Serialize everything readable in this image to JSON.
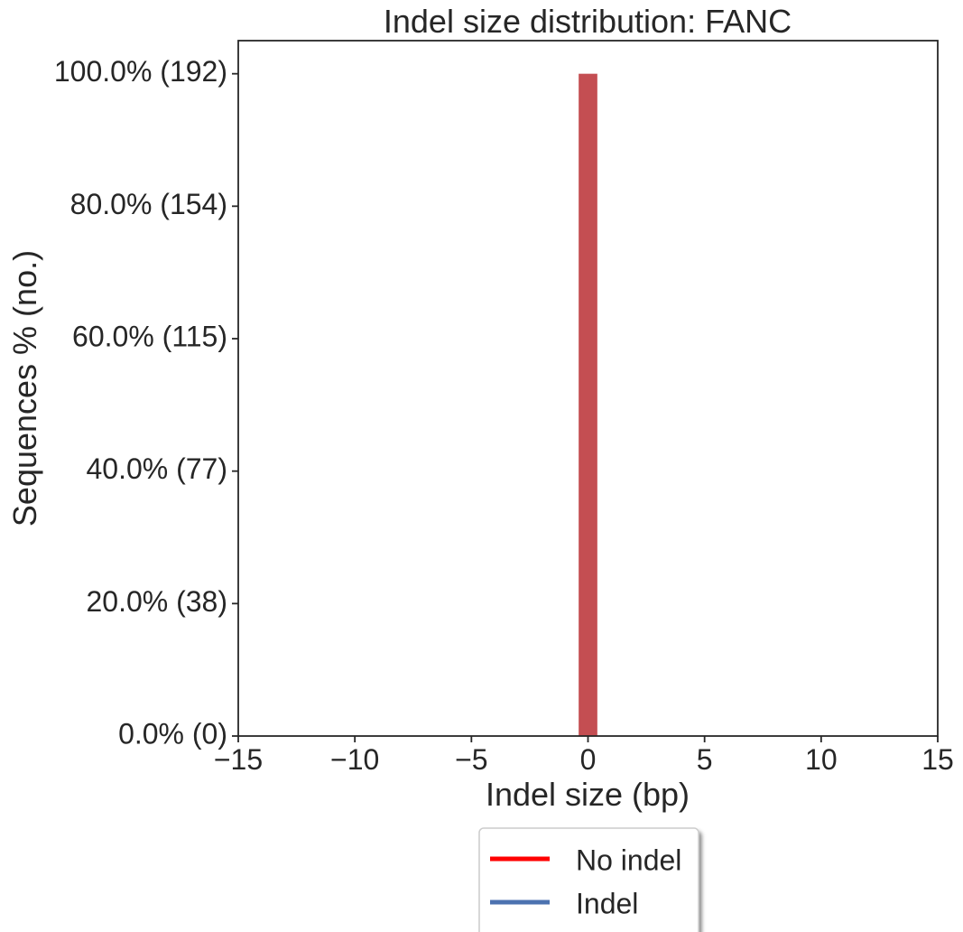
{
  "chart_data": {
    "type": "bar",
    "title": "Indel size distribution: FANC",
    "xlabel": "Indel size (bp)",
    "ylabel": "Sequences % (no.)",
    "xlim": [
      -15,
      15
    ],
    "ylim": [
      0,
      105
    ],
    "x_ticks": [
      -15,
      -10,
      -5,
      0,
      5,
      10,
      15
    ],
    "x_tick_labels": [
      "−15",
      "−10",
      "−5",
      "0",
      "5",
      "10",
      "15"
    ],
    "y_ticks": [
      0,
      20,
      40,
      60,
      80,
      100
    ],
    "y_tick_labels": [
      "0.0% (0)",
      "20.0% (38)",
      "40.0% (77)",
      "60.0% (115)",
      "80.0% (154)",
      "100.0% (192)"
    ],
    "bars": [
      {
        "x": 0,
        "value": 100,
        "color": "#c44e52"
      }
    ],
    "grid": false,
    "legend": {
      "placement": "bottom-center",
      "entries": [
        {
          "label": "No indel",
          "color": "#ff0000"
        },
        {
          "label": "Indel",
          "color": "#4c72b0"
        }
      ]
    }
  }
}
